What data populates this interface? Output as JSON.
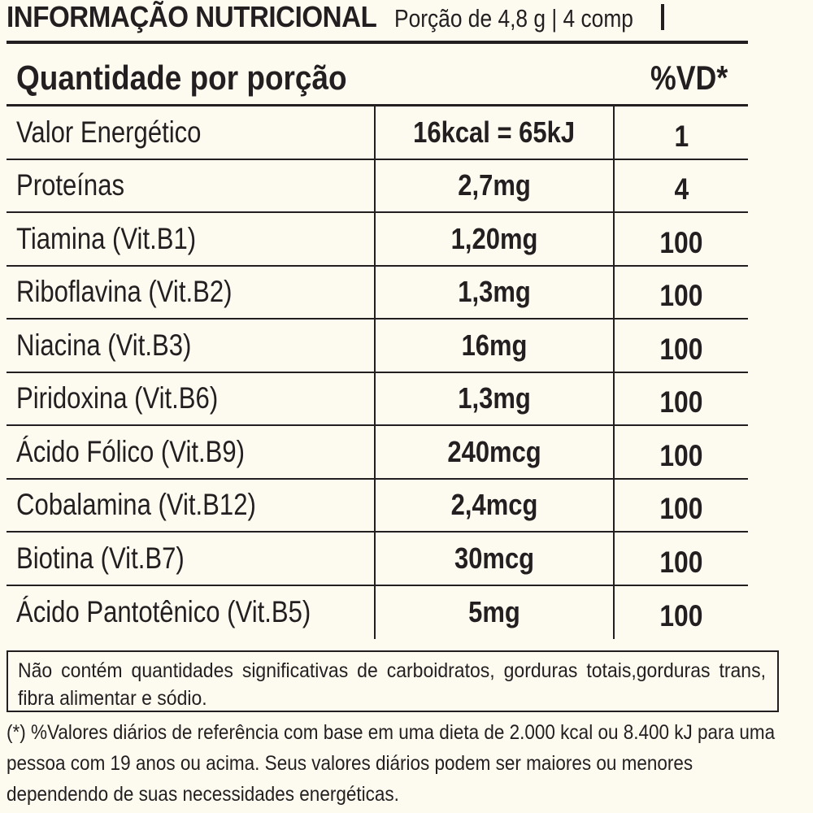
{
  "header": {
    "title": "INFORMAÇÃO NUTRICIONAL",
    "portion": "Porção de 4,8 g | 4 comp"
  },
  "table": {
    "quantity_label": "Quantidade por porção",
    "vd_label": "%VD*",
    "rows": [
      {
        "name": "Valor Energético",
        "amount": "16kcal = 65kJ",
        "vd": "1"
      },
      {
        "name": "Proteínas",
        "amount": "2,7mg",
        "vd": "4"
      },
      {
        "name": "Tiamina (Vit.B1)",
        "amount": "1,20mg",
        "vd": "100"
      },
      {
        "name": "Riboflavina (Vit.B2)",
        "amount": "1,3mg",
        "vd": "100"
      },
      {
        "name": "Niacina (Vit.B3)",
        "amount": "16mg",
        "vd": "100"
      },
      {
        "name": "Piridoxina (Vit.B6)",
        "amount": "1,3mg",
        "vd": "100"
      },
      {
        "name": "Ácido Fólico (Vit.B9)",
        "amount": "240mcg",
        "vd": "100"
      },
      {
        "name": "Cobalamina (Vit.B12)",
        "amount": "2,4mcg",
        "vd": "100"
      },
      {
        "name": "Biotina (Vit.B7)",
        "amount": "30mcg",
        "vd": "100"
      },
      {
        "name": "Ácido Pantotênico (Vit.B5)",
        "amount": "5mg",
        "vd": "100"
      }
    ]
  },
  "note": "Não contém quantidades significativas de carboidratos, gorduras totais,gorduras trans, fibra alimentar e sódio.",
  "footnote": "(*) %Valores diários de referência com base em uma dieta de 2.000 kcal ou 8.400 kJ para uma pessoa com 19 anos ou acima. Seus valores diários podem ser maiores ou menores dependendo de suas necessidades energéticas.",
  "colors": {
    "text": "#231f20",
    "background": "#fdfbf0"
  }
}
